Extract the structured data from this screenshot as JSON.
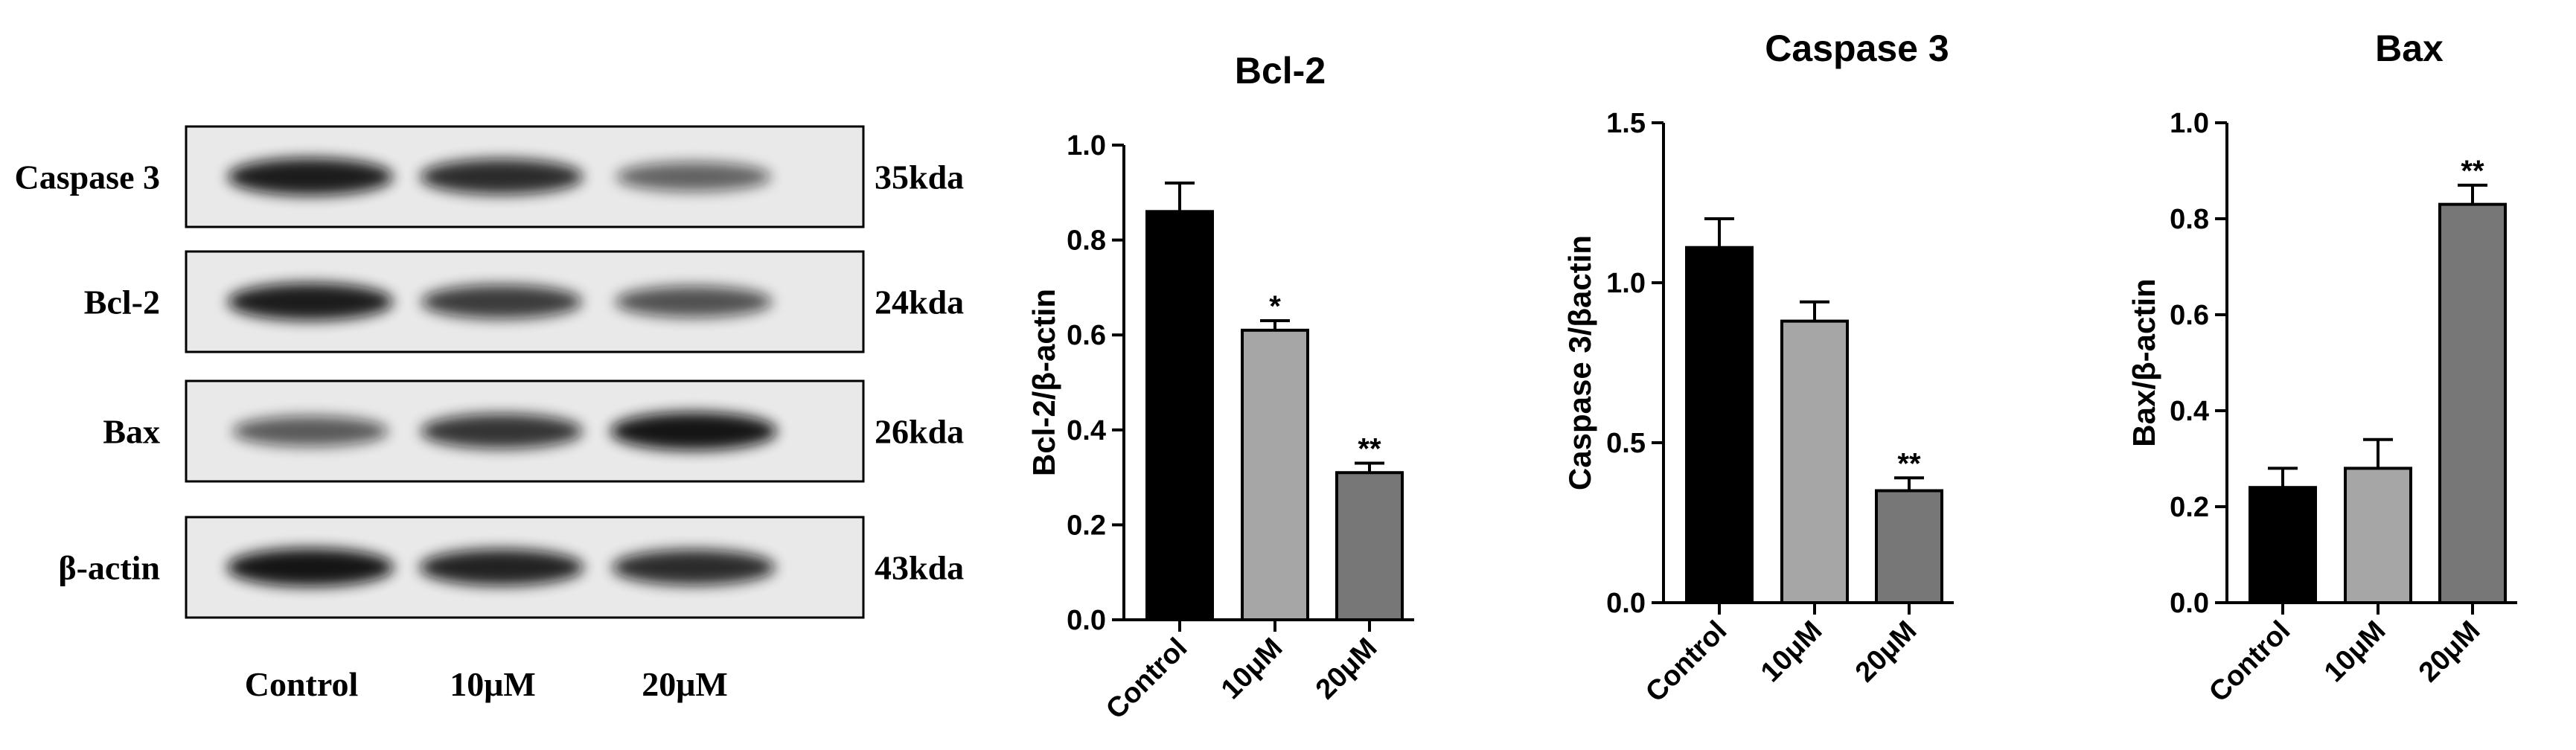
{
  "blot": {
    "rows": [
      {
        "protein": "Caspase 3",
        "size": "35kda",
        "intensities": [
          0.9,
          0.8,
          0.45
        ]
      },
      {
        "protein": "Bcl-2",
        "size": "24kda",
        "intensities": [
          0.9,
          0.7,
          0.55
        ]
      },
      {
        "protein": "Bax",
        "size": "26kda",
        "intensities": [
          0.5,
          0.75,
          0.95
        ]
      },
      {
        "protein": "β-actin",
        "size": "43kda",
        "intensities": [
          0.95,
          0.85,
          0.8
        ]
      }
    ],
    "conditions": [
      "Control",
      "10μM",
      "20μM"
    ]
  },
  "colors": {
    "bar_fills": [
      "#000000",
      "#a6a6a6",
      "#777777"
    ],
    "band": "#111111"
  },
  "chart_data": [
    {
      "type": "bar",
      "title": "Bcl-2",
      "ylabel": "Bcl-2/β-actin",
      "xlabel": "",
      "categories": [
        "Control",
        "10μM",
        "20μM"
      ],
      "values": [
        0.86,
        0.61,
        0.31
      ],
      "errors": [
        0.06,
        0.02,
        0.02
      ],
      "significance": [
        "",
        "*",
        "**"
      ],
      "ylim": [
        0,
        1.0
      ],
      "yticks": [
        "0.0",
        "0.2",
        "0.4",
        "0.6",
        "0.8",
        "1.0"
      ],
      "grid": false
    },
    {
      "type": "bar",
      "title": "Caspase 3",
      "ylabel": "Caspase 3/βactin",
      "xlabel": "",
      "categories": [
        "Control",
        "10μM",
        "20μM"
      ],
      "values": [
        1.11,
        0.88,
        0.35
      ],
      "errors": [
        0.09,
        0.06,
        0.04
      ],
      "significance": [
        "",
        "",
        "**"
      ],
      "ylim": [
        0,
        1.5
      ],
      "yticks": [
        "0.0",
        "0.5",
        "1.0",
        "1.5"
      ],
      "grid": false
    },
    {
      "type": "bar",
      "title": "Bax",
      "ylabel": "Bax/β-actin",
      "xlabel": "",
      "categories": [
        "Control",
        "10μM",
        "20μM"
      ],
      "values": [
        0.24,
        0.28,
        0.83
      ],
      "errors": [
        0.04,
        0.06,
        0.04
      ],
      "significance": [
        "",
        "",
        "**"
      ],
      "ylim": [
        0,
        1.0
      ],
      "yticks": [
        "0.0",
        "0.2",
        "0.4",
        "0.6",
        "0.8",
        "1.0"
      ],
      "grid": false
    }
  ]
}
